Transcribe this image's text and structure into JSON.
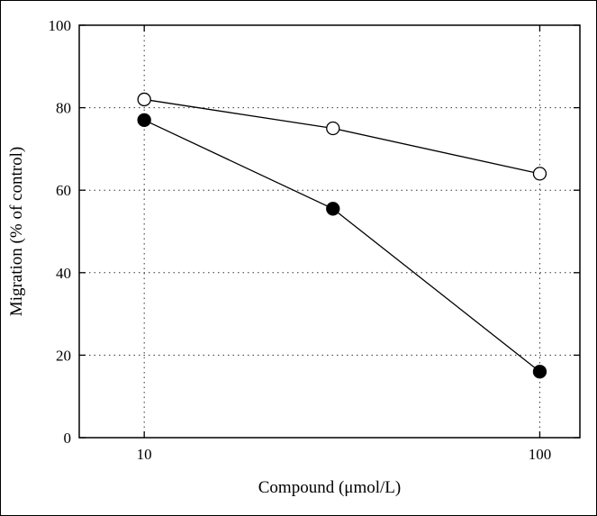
{
  "figure": {
    "title": "",
    "xlabel": "Compound (μmol/L)",
    "ylabel": "Migration (% of control)"
  },
  "chart_data": {
    "type": "line",
    "xscale": "log",
    "x": [
      10,
      30,
      100
    ],
    "series": [
      {
        "name": "open-circle-series",
        "marker": "open",
        "values": [
          82,
          75,
          64
        ]
      },
      {
        "name": "filled-circle-series",
        "marker": "filled",
        "values": [
          77,
          55.5,
          16
        ]
      }
    ],
    "title": "",
    "xlabel": "Compound (μmol/L)",
    "ylabel": "Migration (% of control)",
    "xlim": [
      6.85,
      126.3
    ],
    "ylim": [
      0,
      100
    ],
    "xticks": [
      10,
      100
    ],
    "xtick_labels": [
      "10",
      "100"
    ],
    "yticks": [
      0,
      20,
      40,
      60,
      80,
      100
    ],
    "ytick_labels": [
      "0",
      "20",
      "40",
      "60",
      "80",
      "100"
    ],
    "grid": {
      "on": true,
      "style": "dotted",
      "x_lines": [
        10,
        100
      ],
      "y_lines": [
        20,
        40,
        60,
        80
      ]
    },
    "legend": {
      "visible": false
    },
    "colors": {
      "line": "#000000",
      "grid": "#333333",
      "border": "#000000",
      "open_marker_fill": "#ffffff",
      "filled_marker_fill": "#000000",
      "background": "#ffffff"
    }
  }
}
